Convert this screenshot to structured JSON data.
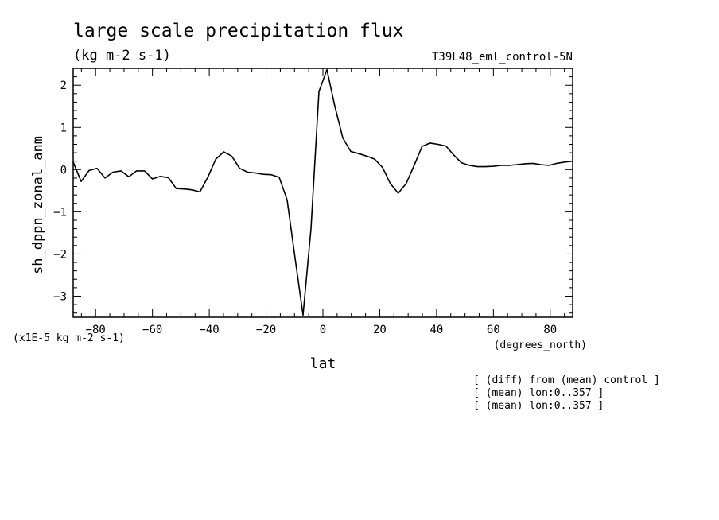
{
  "title": "large scale precipitation flux",
  "units": "(kg m-2 s-1)",
  "run_label": "T39L48_eml_control-5N",
  "scale_note": "(x1E-5 kg m-2 s-1)",
  "x_units": "(degrees_north)",
  "notes": [
    "[ (diff) from (mean) control ]",
    "[ (mean) lon:0..357 ]",
    "[ (mean) lon:0..357 ]"
  ],
  "chart_data": {
    "type": "line",
    "title": "large scale precipitation flux",
    "xlabel": "lat",
    "ylabel": "sh_dppn_zonal_anm",
    "xlim": [
      -87.9,
      87.9
    ],
    "ylim": [
      -3.5,
      2.4
    ],
    "xticks": [
      -80,
      -60,
      -40,
      -20,
      0,
      20,
      40,
      60,
      80
    ],
    "yticks": [
      -3,
      -2,
      -1,
      0,
      1,
      2
    ],
    "grid": false,
    "series": [
      {
        "x": [
          -87.9,
          -85.1,
          -82.3,
          -79.5,
          -76.7,
          -73.9,
          -71.1,
          -68.3,
          -65.6,
          -62.8,
          -60.0,
          -57.2,
          -54.4,
          -51.6,
          -48.8,
          -46.0,
          -43.3,
          -40.5,
          -37.7,
          -34.9,
          -32.1,
          -29.3,
          -26.5,
          -23.7,
          -21.0,
          -18.2,
          -15.4,
          -12.6,
          -9.8,
          -7.0,
          -4.2,
          -1.4,
          1.4,
          4.2,
          7.0,
          9.8,
          12.6,
          15.4,
          18.2,
          21.0,
          23.7,
          26.5,
          29.3,
          32.1,
          34.9,
          37.7,
          40.5,
          43.3,
          46.0,
          48.8,
          51.6,
          54.4,
          57.2,
          60.0,
          62.8,
          65.6,
          68.3,
          71.1,
          73.9,
          76.7,
          79.5,
          82.3,
          85.1,
          87.9
        ],
        "values": [
          0.18,
          -0.28,
          -0.02,
          0.03,
          -0.2,
          -0.06,
          -0.03,
          -0.17,
          -0.03,
          -0.03,
          -0.22,
          -0.16,
          -0.19,
          -0.45,
          -0.46,
          -0.48,
          -0.53,
          -0.18,
          0.25,
          0.42,
          0.32,
          0.03,
          -0.06,
          -0.08,
          -0.11,
          -0.12,
          -0.18,
          -0.72,
          -2.1,
          -3.45,
          -1.4,
          1.85,
          2.37,
          1.5,
          0.75,
          0.43,
          0.38,
          0.32,
          0.25,
          0.05,
          -0.33,
          -0.56,
          -0.33,
          0.1,
          0.55,
          0.63,
          0.6,
          0.56,
          0.35,
          0.16,
          0.1,
          0.07,
          0.07,
          0.08,
          0.1,
          0.1,
          0.12,
          0.14,
          0.15,
          0.12,
          0.1,
          0.15,
          0.18,
          0.2
        ]
      }
    ]
  }
}
